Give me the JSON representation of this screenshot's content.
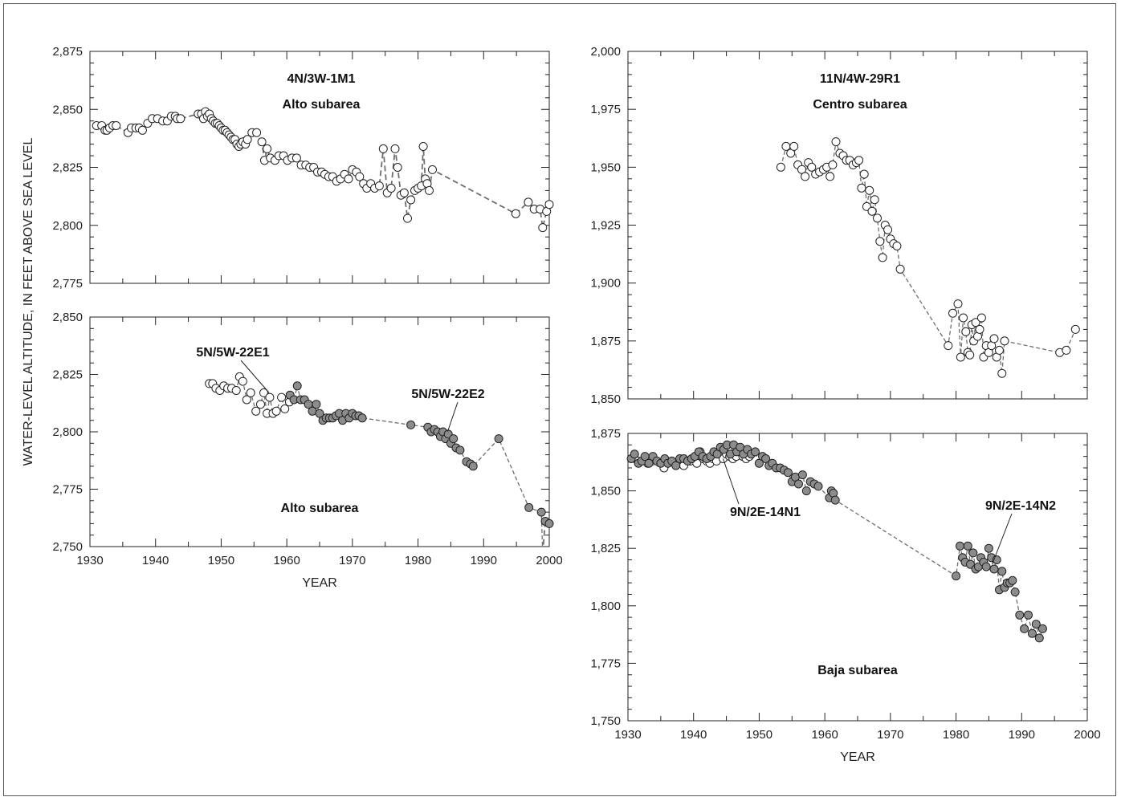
{
  "figure": {
    "ylabel": "WATER-LEVEL ALTITUDE, IN FEET ABOVE SEA LEVEL",
    "colors": {
      "open_marker_fill": "#ffffff",
      "filled_marker_fill": "#8c8c8c",
      "marker_stroke": "#222222",
      "line": "#6e6e6e",
      "axis": "#222222"
    }
  },
  "chart_data": [
    {
      "id": "alto_4n",
      "type": "line",
      "xlabel": "",
      "x_tick_labels": [
        "",
        "",
        "",
        "",
        "",
        "",
        "",
        ""
      ],
      "x_ticks": [
        1930,
        1940,
        1950,
        1960,
        1970,
        1980,
        1990,
        2000
      ],
      "xlim": [
        1930,
        2000
      ],
      "ylim": [
        2775,
        2875
      ],
      "y_ticks": [
        2775,
        2800,
        2825,
        2850,
        2875
      ],
      "y_tick_labels": [
        "2,775",
        "2,800",
        "2,825",
        "2,850",
        "2,875"
      ],
      "labels": [
        "4N/3W-1M1",
        "Alto subarea"
      ],
      "series": [
        {
          "name": "4N/3W-1M1",
          "marker": "open",
          "gaps_after": [
            1943.8,
            1981.7
          ],
          "x": [
            1931.0,
            1931.8,
            1932.3,
            1932.6,
            1933.0,
            1933.5,
            1934.0,
            1935.8,
            1936.3,
            1937.0,
            1937.5,
            1938.0,
            1938.8,
            1939.5,
            1940.3,
            1941.1,
            1941.8,
            1942.4,
            1943.0,
            1943.3,
            1943.8,
            1946.5,
            1947.0,
            1947.3,
            1947.6,
            1947.9,
            1948.2,
            1948.5,
            1948.8,
            1949.1,
            1949.4,
            1949.7,
            1950.0,
            1950.3,
            1950.6,
            1950.9,
            1951.2,
            1951.5,
            1951.8,
            1952.1,
            1952.4,
            1952.7,
            1953.0,
            1953.3,
            1953.7,
            1954.0,
            1954.7,
            1955.4,
            1956.2,
            1956.6,
            1957.0,
            1957.5,
            1958.2,
            1958.8,
            1959.5,
            1960.1,
            1960.8,
            1961.5,
            1962.2,
            1962.9,
            1963.5,
            1964.1,
            1964.7,
            1965.3,
            1965.8,
            1966.4,
            1967.0,
            1967.6,
            1968.2,
            1968.8,
            1969.4,
            1970.0,
            1970.6,
            1971.1,
            1971.7,
            1972.2,
            1972.8,
            1973.4,
            1974.1,
            1974.7,
            1975.3,
            1975.9,
            1976.5,
            1976.9,
            1977.4,
            1977.9,
            1978.4,
            1978.9,
            1979.5,
            1980.0,
            1980.5,
            1980.8,
            1981.1,
            1981.4,
            1981.7,
            1982.2,
            1994.9,
            1996.8,
            1997.7,
            1998.6,
            1999.0,
            1999.6,
            2000.0
          ],
          "y": [
            2843,
            2843,
            2841,
            2841,
            2842,
            2843,
            2843,
            2840,
            2842,
            2842,
            2842,
            2841,
            2844,
            2846,
            2846,
            2845,
            2845,
            2847,
            2847,
            2846,
            2846,
            2848,
            2848,
            2846,
            2849,
            2847,
            2848,
            2846,
            2845,
            2844,
            2844,
            2843,
            2842,
            2841,
            2841,
            2840,
            2839,
            2838,
            2837,
            2837,
            2835,
            2834,
            2835,
            2836,
            2835,
            2837,
            2840,
            2840,
            2836,
            2828,
            2833,
            2829,
            2828,
            2830,
            2830,
            2828,
            2829,
            2829,
            2826,
            2826,
            2825,
            2825,
            2823,
            2823,
            2822,
            2821,
            2821,
            2819,
            2820,
            2822,
            2820,
            2824,
            2823,
            2821,
            2818,
            2816,
            2818,
            2816,
            2817,
            2833,
            2814,
            2816,
            2833,
            2825,
            2813,
            2814,
            2803,
            2811,
            2815,
            2816,
            2817,
            2834,
            2820,
            2818,
            2815,
            2824,
            2805,
            2810,
            2807,
            2807,
            2799,
            2806,
            2809
          ]
        }
      ]
    },
    {
      "id": "alto_5n",
      "type": "line",
      "xlabel": "YEAR",
      "x_ticks": [
        1930,
        1940,
        1950,
        1960,
        1970,
        1980,
        1990,
        2000
      ],
      "x_tick_labels": [
        "1930",
        "1940",
        "1950",
        "1960",
        "1970",
        "1980",
        "1990",
        "2000"
      ],
      "xlim": [
        1930,
        2000
      ],
      "ylim": [
        2750,
        2850
      ],
      "y_ticks": [
        2750,
        2775,
        2800,
        2825,
        2850
      ],
      "y_tick_labels": [
        "2,750",
        "2,775",
        "2,800",
        "2,825",
        "2,850"
      ],
      "labels": [
        "Alto subarea"
      ],
      "callouts": [
        "5N/5W-22E1",
        "5N/5W-22E2"
      ],
      "series": [
        {
          "name": "5N/5W-22E1",
          "marker": "open",
          "x": [
            1948.2,
            1948.7,
            1949.2,
            1949.8,
            1950.4,
            1951.0,
            1951.6,
            1952.3,
            1952.8,
            1953.3,
            1953.9,
            1954.5,
            1955.3,
            1956.0,
            1956.5,
            1957.0,
            1957.4,
            1957.9,
            1958.4,
            1959.2,
            1959.7,
            1960.4
          ],
          "y": [
            2821,
            2821,
            2819,
            2818,
            2820,
            2819,
            2819,
            2818,
            2824,
            2822,
            2814,
            2817,
            2809,
            2812,
            2817,
            2808,
            2815,
            2808,
            2809,
            2815,
            2810,
            2813
          ]
        },
        {
          "name": "5N/5W-22E2",
          "marker": "filled",
          "gaps_after": [
            1999.0
          ],
          "x": [
            1960.5,
            1961.1,
            1961.6,
            1962.1,
            1962.7,
            1963.3,
            1963.9,
            1964.5,
            1965.0,
            1965.5,
            1966.0,
            1966.5,
            1967.0,
            1967.5,
            1968.0,
            1968.5,
            1969.0,
            1969.5,
            1970.0,
            1970.5,
            1971.0,
            1971.5,
            1978.9,
            1981.5,
            1982.0,
            1982.5,
            1983.0,
            1983.4,
            1983.8,
            1984.2,
            1984.6,
            1985.0,
            1985.4,
            1985.8,
            1986.4,
            1987.4,
            1988.0,
            1988.4,
            1992.3,
            1996.9,
            1998.8,
            1999.0,
            1999.4,
            2000.0
          ],
          "y": [
            2816,
            2814,
            2820,
            2814,
            2814,
            2812,
            2809,
            2812,
            2808,
            2805,
            2806,
            2806,
            2806,
            2807,
            2808,
            2805,
            2808,
            2806,
            2808,
            2807,
            2807,
            2806,
            2803,
            2802,
            2800,
            2801,
            2800,
            2798,
            2800,
            2797,
            2799,
            2795,
            2797,
            2793,
            2792,
            2787,
            2786,
            2785,
            2797,
            2767,
            2765,
            2747,
            2761,
            2760
          ]
        }
      ]
    },
    {
      "id": "centro",
      "type": "line",
      "xlabel": "",
      "x_tick_labels": [
        "",
        "",
        "",
        "",
        "",
        "",
        "",
        "",
        ""
      ],
      "x_ticks": [
        1930,
        1940,
        1950,
        1960,
        1970,
        1980,
        1990,
        2000
      ],
      "xlim": [
        1930,
        2000
      ],
      "ylim": [
        1850,
        2000
      ],
      "y_ticks": [
        1850,
        1875,
        1900,
        1925,
        1950,
        1975,
        2000
      ],
      "y_tick_labels": [
        "1,850",
        "1,875",
        "1,900",
        "1,925",
        "1,950",
        "1,975",
        "2,000"
      ],
      "labels": [
        "11N/4W-29R1",
        "Centro subarea"
      ],
      "series": [
        {
          "name": "11N/4W-29R1",
          "marker": "open",
          "x": [
            1953.3,
            1954.1,
            1954.8,
            1955.3,
            1955.9,
            1956.5,
            1957.0,
            1957.5,
            1958.0,
            1958.6,
            1959.2,
            1959.8,
            1960.3,
            1960.8,
            1961.2,
            1961.7,
            1962.3,
            1962.8,
            1963.3,
            1963.8,
            1964.3,
            1964.8,
            1965.2,
            1965.6,
            1966.0,
            1966.4,
            1966.8,
            1967.2,
            1967.6,
            1968.0,
            1968.4,
            1968.8,
            1969.2,
            1969.6,
            1970.0,
            1970.5,
            1971.0,
            1971.5,
            1978.8,
            1979.5,
            1980.3,
            1980.7,
            1981.1,
            1981.5,
            1981.8,
            1982.1,
            1982.4,
            1982.7,
            1983.0,
            1983.3,
            1983.6,
            1983.9,
            1984.2,
            1984.6,
            1985.0,
            1985.4,
            1985.8,
            1986.2,
            1986.6,
            1987.0,
            1987.4,
            1995.8,
            1996.8,
            1998.2
          ],
          "y": [
            1950,
            1959,
            1956,
            1959,
            1951,
            1949,
            1946,
            1952,
            1950,
            1947,
            1948,
            1949,
            1950,
            1946,
            1951,
            1961,
            1956,
            1955,
            1953,
            1953,
            1951,
            1952,
            1953,
            1941,
            1947,
            1933,
            1940,
            1931,
            1936,
            1928,
            1918,
            1911,
            1925,
            1923,
            1919,
            1917,
            1916,
            1906,
            1873,
            1887,
            1891,
            1868,
            1885,
            1879,
            1870,
            1869,
            1882,
            1875,
            1883,
            1877,
            1880,
            1885,
            1868,
            1873,
            1870,
            1873,
            1876,
            1868,
            1871,
            1861,
            1875,
            1870,
            1871,
            1880
          ]
        }
      ]
    },
    {
      "id": "baja",
      "type": "line",
      "xlabel": "YEAR",
      "x_ticks": [
        1930,
        1940,
        1950,
        1960,
        1970,
        1980,
        1990,
        2000
      ],
      "x_tick_labels": [
        "1930",
        "1940",
        "1950",
        "1960",
        "1970",
        "1980",
        "1990",
        "2000"
      ],
      "xlim": [
        1930,
        2000
      ],
      "ylim": [
        1750,
        1875
      ],
      "y_ticks": [
        1750,
        1775,
        1800,
        1825,
        1850,
        1875
      ],
      "y_tick_labels": [
        "1,750",
        "1,775",
        "1,800",
        "1,825",
        "1,850",
        "1,875"
      ],
      "labels": [
        "Baja subarea"
      ],
      "callouts": [
        "9N/2E-14N1",
        "9N/2E-14N2"
      ],
      "series": [
        {
          "name": "9N/2E-14N1",
          "marker": "open",
          "x": [
            1931.5,
            1933.0,
            1935.5,
            1937.5,
            1938.5,
            1939.5,
            1940.5,
            1941.0,
            1941.5,
            1942.0,
            1942.5,
            1943.0,
            1943.5,
            1944.0,
            1944.5,
            1945.0,
            1945.5,
            1946.0,
            1946.5,
            1947.0,
            1947.5,
            1948.0,
            1948.5
          ],
          "y": [
            1863,
            1862,
            1860,
            1862,
            1861,
            1863,
            1862,
            1867,
            1864,
            1863,
            1862,
            1864,
            1863,
            1866,
            1864,
            1866,
            1865,
            1864,
            1865,
            1867,
            1865,
            1864,
            1865
          ]
        },
        {
          "name": "9N/2E-14N2",
          "marker": "filled",
          "x": [
            1930.5,
            1931.0,
            1931.6,
            1932.1,
            1932.6,
            1933.2,
            1933.8,
            1934.4,
            1935.0,
            1935.6,
            1936.1,
            1936.7,
            1937.3,
            1937.9,
            1938.5,
            1939.1,
            1939.7,
            1940.2,
            1940.8,
            1941.4,
            1942.0,
            1942.6,
            1943.1,
            1943.6,
            1944.1,
            1944.6,
            1945.1,
            1945.6,
            1946.1,
            1946.6,
            1947.1,
            1947.6,
            1948.2,
            1948.8,
            1949.4,
            1950.0,
            1950.5,
            1951.0,
            1951.5,
            1952.0,
            1952.6,
            1953.2,
            1953.8,
            1954.4,
            1955.0,
            1955.5,
            1956.0,
            1956.6,
            1957.2,
            1957.8,
            1958.4,
            1959.0,
            1960.7,
            1961.0,
            1961.3,
            1961.6,
            1980.0,
            1980.6,
            1981.0,
            1981.4,
            1981.8,
            1982.2,
            1982.6,
            1983.0,
            1983.4,
            1983.8,
            1984.2,
            1984.6,
            1985.0,
            1985.4,
            1985.8,
            1986.2,
            1986.6,
            1987.0,
            1987.4,
            1987.8,
            1988.2,
            1988.6,
            1989.0,
            1989.7,
            1990.4,
            1991.0,
            1991.6,
            1992.2,
            1992.7,
            1993.2
          ],
          "y": [
            1864,
            1866,
            1862,
            1863,
            1865,
            1862,
            1865,
            1863,
            1862,
            1864,
            1862,
            1863,
            1861,
            1864,
            1864,
            1863,
            1864,
            1865,
            1867,
            1865,
            1864,
            1865,
            1867,
            1866,
            1869,
            1868,
            1870,
            1866,
            1870,
            1867,
            1869,
            1866,
            1868,
            1866,
            1867,
            1862,
            1865,
            1864,
            1861,
            1862,
            1860,
            1860,
            1859,
            1858,
            1854,
            1856,
            1853,
            1857,
            1850,
            1854,
            1853,
            1852,
            1847,
            1850,
            1849,
            1846,
            1813,
            1826,
            1821,
            1819,
            1826,
            1818,
            1823,
            1816,
            1817,
            1821,
            1819,
            1817,
            1825,
            1821,
            1816,
            1820,
            1807,
            1815,
            1808,
            1810,
            1810,
            1811,
            1806,
            1796,
            1790,
            1796,
            1788,
            1792,
            1786,
            1790
          ]
        }
      ]
    }
  ]
}
